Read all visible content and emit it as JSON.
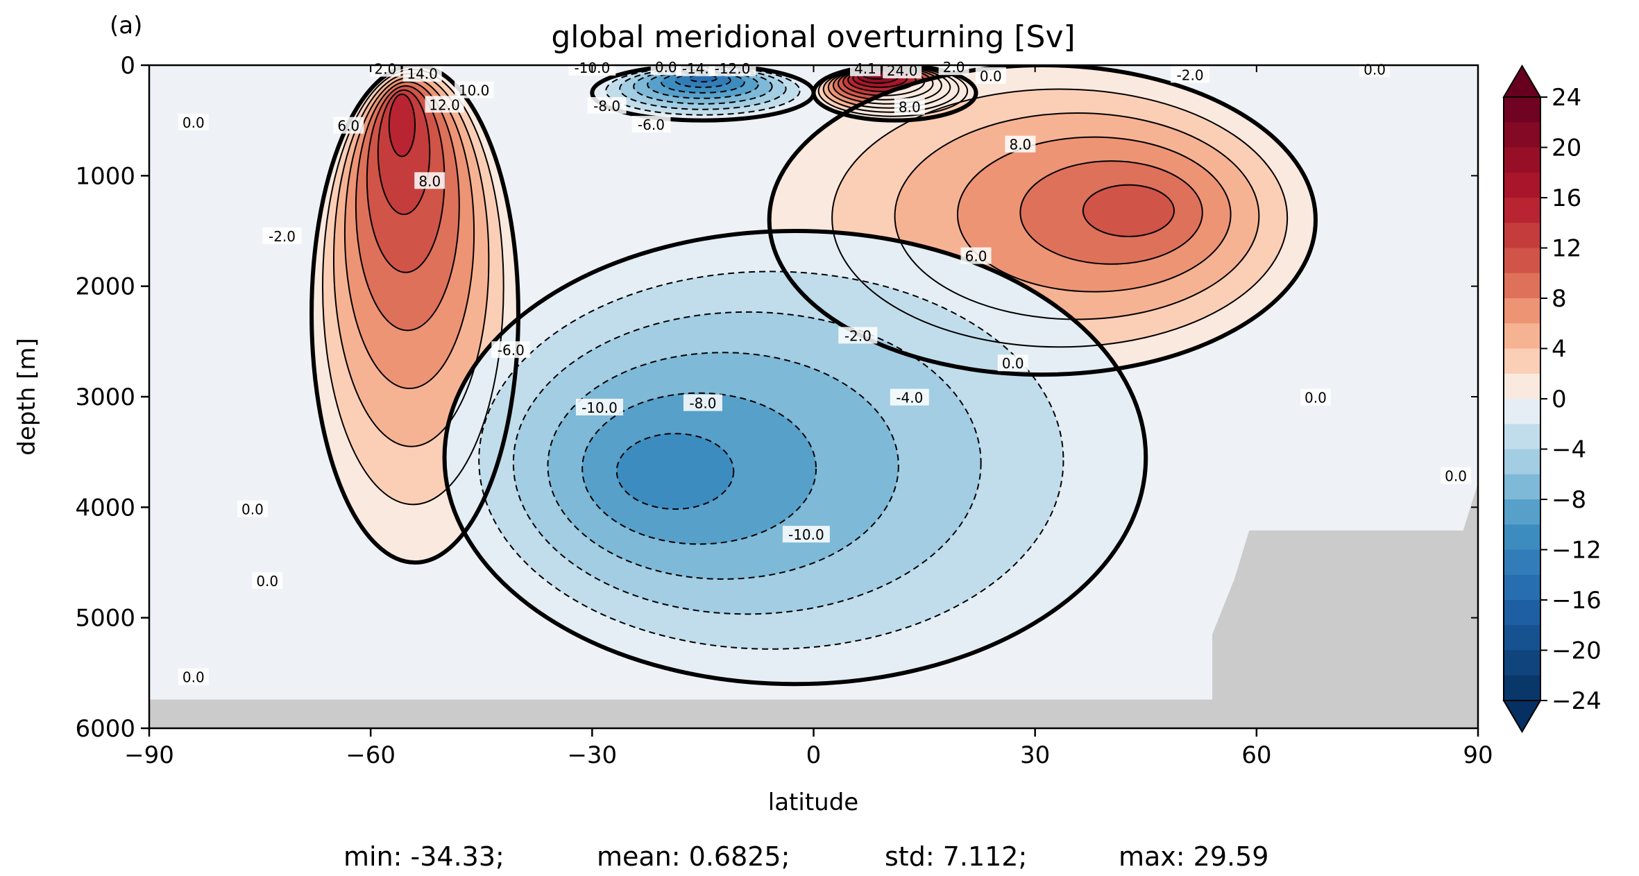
{
  "chart_data": {
    "type": "contour",
    "panel_label": "(a)",
    "title": "global meridional overturning [Sv]",
    "xlabel": "latitude",
    "ylabel": "depth [m]",
    "xlim": [
      -90,
      90
    ],
    "ylim": [
      6000,
      0
    ],
    "x_ticks": [
      -90,
      -60,
      -30,
      0,
      30,
      60,
      90
    ],
    "x_tick_labels": [
      "−90",
      "−60",
      "−30",
      "0",
      "30",
      "60",
      "90"
    ],
    "y_ticks": [
      0,
      1000,
      2000,
      3000,
      4000,
      5000,
      6000
    ],
    "y_tick_labels": [
      "0",
      "1000",
      "2000",
      "3000",
      "4000",
      "5000",
      "6000"
    ],
    "colorbar": {
      "colormap": "RdBu_r",
      "range": [
        -24,
        24
      ],
      "step": 2,
      "extend": "both",
      "ticks": [
        24,
        20,
        16,
        12,
        8,
        4,
        0,
        -4,
        -8,
        -12,
        -16,
        -20,
        -24
      ],
      "tick_labels": [
        "24",
        "20",
        "16",
        "12",
        "8",
        "4",
        "0",
        "−4",
        "−8",
        "−12",
        "−16",
        "−20",
        "−24"
      ]
    },
    "land_color": "#cbcbcb",
    "contour_labels": [
      "0.0",
      "0.0",
      "0.0",
      "0.0",
      "0.0",
      "0.0",
      "0.0",
      "0.0",
      "0.0",
      "0.0",
      "2.0",
      "14.0",
      "12.0",
      "10.0",
      "6.0",
      "8.0",
      "-2.0",
      "-10.0",
      "-14.",
      "-12.0",
      "-8.0",
      "-6.0",
      "-6.0",
      "-2.0",
      "-10.0",
      "-8.0",
      "-4.0",
      "-10.0",
      "4.1",
      "24.0",
      "2.0",
      "8.0",
      "8.0",
      "6.0",
      "-2.0"
    ],
    "cells": {
      "pos_southern_cell": {
        "lat_range": [
          -68,
          -40
        ],
        "depth_range": [
          0,
          4500
        ],
        "peak_lat": -56,
        "peak_depth": 300,
        "peak": 16
      },
      "neg_tropical_upper": {
        "lat_range": [
          -30,
          0
        ],
        "depth_range": [
          0,
          500
        ],
        "peak_lat": -15,
        "peak_depth": 100,
        "peak": -16
      },
      "pos_nh_upper": {
        "lat_range": [
          0,
          22
        ],
        "depth_range": [
          0,
          500
        ],
        "peak_lat": 8,
        "peak_depth": 50,
        "peak": 24
      },
      "pos_nadw_cell": {
        "lat_range": [
          -6,
          68
        ],
        "depth_range": [
          0,
          2800
        ],
        "peak_lat": 45,
        "peak_depth": 1300,
        "peak": 12
      },
      "neg_abyssal_cell": {
        "lat_range": [
          -50,
          45
        ],
        "depth_range": [
          1500,
          5600
        ],
        "peak_lat": -22,
        "peak_depth": 3700,
        "peak": -12
      }
    },
    "stats": {
      "min": "-34.33",
      "mean": "0.6825",
      "std": "7.112",
      "max": "29.59"
    }
  },
  "stats_line": {
    "min_label": "min: -34.33;",
    "mean_label": "mean: 0.6825;",
    "std_label": "std: 7.112;",
    "max_label": "max: 29.59"
  }
}
